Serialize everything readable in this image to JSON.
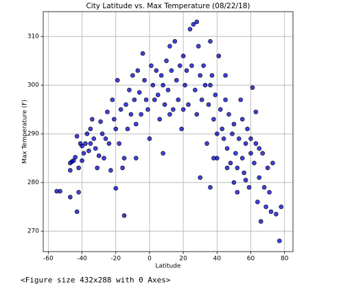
{
  "chart_data": {
    "type": "scatter",
    "title": "City Latitude vs. Max Temperature (08/22/18)",
    "xlabel": "Latitude",
    "ylabel": "Max Temperature (F)",
    "xlim": [
      -63,
      85
    ],
    "ylim": [
      265.8,
      315.1
    ],
    "xticks": [
      -60,
      -40,
      -20,
      0,
      20,
      40,
      60,
      80
    ],
    "yticks": [
      270,
      280,
      290,
      300,
      310
    ],
    "grid": true,
    "color": "#0000cc",
    "edgecolor": "#000000",
    "x": [
      -55,
      -53,
      -47,
      -47,
      -47,
      -46,
      -45,
      -44,
      -43,
      -43,
      -42,
      -42,
      -41,
      -40,
      -40,
      -39,
      -38,
      -37,
      -36,
      -35,
      -35,
      -34,
      -33,
      -32,
      -31,
      -30,
      -29,
      -28,
      -27,
      -26,
      -25,
      -24,
      -23,
      -22,
      -21,
      -20,
      -20,
      -19,
      -18,
      -17,
      -16,
      -15,
      -15,
      -14,
      -13,
      -12,
      -11,
      -10,
      -9,
      -8,
      -7,
      -6,
      -5,
      -4,
      -3,
      -2,
      -1,
      0,
      1,
      2,
      3,
      4,
      5,
      6,
      7,
      8,
      8,
      9,
      10,
      11,
      12,
      13,
      14,
      15,
      16,
      17,
      18,
      19,
      20,
      21,
      22,
      23,
      24,
      25,
      26,
      27,
      28,
      29,
      30,
      30,
      31,
      32,
      33,
      34,
      35,
      36,
      36,
      37,
      38,
      39,
      40,
      40,
      41,
      42,
      43,
      44,
      45,
      46,
      47,
      48,
      49,
      50,
      50,
      51,
      52,
      53,
      54,
      55,
      56,
      57,
      58,
      59,
      60,
      61,
      62,
      63,
      64,
      65,
      66,
      67,
      68,
      69,
      70,
      71,
      72,
      73,
      75,
      77,
      78,
      36,
      45,
      55,
      60,
      38,
      65,
      52,
      -8,
      12,
      28,
      20,
      46,
      63,
      57
    ],
    "values": [
      278.2,
      278.2,
      282.5,
      277,
      284,
      284.3,
      284.5,
      285.2,
      274,
      289.5,
      283,
      278,
      288,
      287.5,
      284.5,
      286,
      288,
      290,
      286.5,
      291,
      288,
      293,
      289,
      287,
      283,
      285.5,
      292.5,
      290,
      285,
      289,
      294.5,
      288,
      282.5,
      297,
      293,
      278.8,
      291,
      301,
      288,
      295,
      283,
      273.2,
      285,
      296,
      291,
      299,
      294,
      302,
      297,
      292,
      303,
      298.5,
      294,
      306.5,
      301,
      297,
      295,
      289,
      304,
      300,
      297,
      303,
      298,
      293,
      302,
      286,
      300,
      296,
      305,
      299,
      308,
      303,
      295,
      309,
      301,
      297,
      304,
      291,
      306,
      300,
      303,
      296,
      311.5,
      304,
      312.5,
      299,
      313,
      308,
      281,
      302,
      297,
      304,
      300,
      288,
      296,
      279,
      309,
      302,
      293,
      298,
      290,
      285,
      306,
      295,
      291,
      289,
      297,
      287,
      294,
      284,
      290,
      280,
      292,
      286,
      283,
      289,
      297,
      285,
      282,
      288,
      291,
      279,
      286,
      299.5,
      284,
      288,
      276,
      281,
      272,
      286,
      279,
      275,
      283,
      278,
      274,
      284,
      273.5,
      268,
      275,
      300,
      302,
      293,
      289,
      285,
      287,
      278,
      285,
      294,
      294,
      295,
      283,
      294.5,
      280.5
    ]
  },
  "footer": "<Figure size 432x288 with 0 Axes>"
}
